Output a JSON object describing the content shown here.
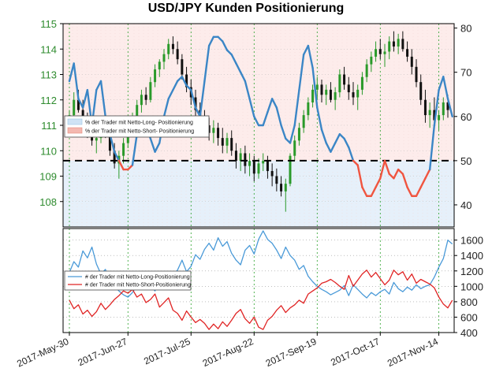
{
  "chart_data": [
    {
      "type": "candlestick+line",
      "title": "USD/JPY Kunden Positionierung",
      "y_left_lim": [
        107,
        115
      ],
      "y_left_ticks": [
        "108",
        "109",
        "110",
        "111",
        "112",
        "113",
        "114",
        "115"
      ],
      "y_right_lim": [
        35,
        81
      ],
      "y_right_ticks": [
        "40",
        "50",
        "60",
        "70",
        "80"
      ],
      "x_ticks": [
        "2017-May-30",
        "2017-Jun-27",
        "2017-Jul-25",
        "2017-Aug-22",
        "2017-Sep-19",
        "2017-Oct-17",
        "2017-Nov-14"
      ],
      "reference_line": 50,
      "legend": [
        {
          "label": "% der Trader mit Netto-Long- Positionierung",
          "color": "#cfe3f5"
        },
        {
          "label": "% der Trader mit Netto-Short- Positionierung",
          "color": "#f4b8b0"
        }
      ],
      "candles": [
        [
          111.0,
          111.6,
          110.6,
          111.4
        ],
        [
          111.4,
          112.3,
          111.2,
          112.0
        ],
        [
          112.0,
          112.4,
          111.5,
          111.6
        ],
        [
          111.6,
          112.0,
          111.0,
          111.2
        ],
        [
          111.2,
          111.5,
          110.5,
          110.7
        ],
        [
          110.7,
          111.0,
          110.2,
          110.4
        ],
        [
          110.4,
          110.9,
          109.9,
          110.5
        ],
        [
          110.5,
          111.2,
          110.3,
          111.0
        ],
        [
          111.0,
          111.4,
          110.5,
          110.6
        ],
        [
          110.6,
          110.8,
          109.8,
          110.0
        ],
        [
          110.0,
          110.3,
          109.3,
          109.5
        ],
        [
          109.5,
          110.0,
          108.9,
          109.8
        ],
        [
          109.8,
          110.5,
          109.5,
          110.3
        ],
        [
          110.3,
          111.0,
          110.1,
          110.8
        ],
        [
          110.8,
          111.5,
          110.6,
          111.3
        ],
        [
          111.3,
          112.0,
          111.0,
          111.8
        ],
        [
          111.8,
          112.4,
          111.5,
          112.2
        ],
        [
          112.2,
          112.5,
          111.8,
          112.0
        ],
        [
          112.0,
          112.9,
          111.9,
          112.7
        ],
        [
          112.7,
          113.4,
          112.5,
          113.2
        ],
        [
          113.2,
          113.6,
          112.9,
          113.5
        ],
        [
          113.5,
          114.0,
          113.2,
          113.8
        ],
        [
          113.8,
          114.4,
          113.6,
          114.2
        ],
        [
          114.2,
          114.5,
          113.8,
          114.0
        ],
        [
          114.0,
          114.3,
          113.4,
          113.6
        ],
        [
          113.6,
          113.8,
          112.8,
          113.0
        ],
        [
          113.0,
          113.3,
          112.3,
          112.5
        ],
        [
          112.5,
          112.8,
          111.8,
          112.1
        ],
        [
          112.1,
          112.4,
          111.3,
          111.6
        ],
        [
          111.6,
          111.9,
          110.9,
          111.2
        ],
        [
          111.2,
          111.6,
          110.6,
          111.0
        ],
        [
          111.0,
          111.3,
          110.4,
          110.7
        ],
        [
          110.7,
          111.2,
          110.3,
          110.9
        ],
        [
          110.9,
          111.1,
          110.2,
          110.5
        ],
        [
          110.5,
          110.9,
          109.9,
          110.2
        ],
        [
          110.2,
          110.7,
          109.9,
          110.5
        ],
        [
          110.5,
          110.8,
          109.8,
          110.0
        ],
        [
          110.0,
          110.3,
          109.3,
          109.6
        ],
        [
          109.6,
          110.1,
          109.2,
          109.9
        ],
        [
          109.9,
          110.2,
          109.1,
          109.4
        ],
        [
          109.4,
          109.9,
          109.0,
          109.6
        ],
        [
          109.6,
          109.8,
          108.8,
          109.1
        ],
        [
          109.1,
          109.7,
          108.9,
          109.5
        ],
        [
          109.5,
          109.9,
          109.2,
          109.6
        ],
        [
          109.6,
          109.8,
          108.9,
          109.2
        ],
        [
          109.2,
          109.5,
          108.6,
          109.0
        ],
        [
          109.0,
          109.3,
          108.4,
          108.7
        ],
        [
          108.7,
          109.0,
          108.2,
          108.4
        ],
        [
          108.4,
          108.9,
          107.6,
          108.7
        ],
        [
          108.7,
          109.9,
          108.6,
          109.8
        ],
        [
          109.8,
          110.6,
          109.6,
          110.4
        ],
        [
          110.4,
          111.1,
          110.2,
          110.9
        ],
        [
          110.9,
          111.6,
          110.7,
          111.4
        ],
        [
          111.4,
          112.1,
          111.2,
          111.9
        ],
        [
          111.9,
          112.6,
          111.7,
          112.4
        ],
        [
          112.4,
          112.9,
          112.0,
          112.6
        ],
        [
          112.6,
          112.8,
          111.9,
          112.2
        ],
        [
          112.2,
          112.6,
          111.8,
          112.4
        ],
        [
          112.4,
          112.7,
          111.9,
          112.0
        ],
        [
          112.0,
          112.5,
          111.6,
          112.3
        ],
        [
          112.3,
          113.2,
          112.1,
          113.0
        ],
        [
          113.0,
          113.3,
          112.4,
          112.6
        ],
        [
          112.6,
          112.9,
          112.0,
          112.3
        ],
        [
          112.3,
          112.7,
          111.8,
          112.1
        ],
        [
          112.1,
          112.6,
          111.6,
          112.4
        ],
        [
          112.4,
          113.1,
          112.2,
          112.9
        ],
        [
          112.9,
          113.6,
          112.7,
          113.4
        ],
        [
          113.4,
          113.9,
          113.1,
          113.7
        ],
        [
          113.7,
          114.3,
          113.5,
          114.0
        ],
        [
          114.0,
          114.4,
          113.6,
          113.8
        ],
        [
          113.8,
          114.2,
          113.3,
          113.9
        ],
        [
          113.9,
          114.5,
          113.6,
          114.3
        ],
        [
          114.3,
          114.7,
          113.9,
          114.1
        ],
        [
          114.1,
          114.6,
          113.8,
          114.4
        ],
        [
          114.4,
          114.7,
          113.9,
          114.0
        ],
        [
          114.0,
          114.3,
          113.5,
          113.7
        ],
        [
          113.7,
          114.0,
          113.0,
          113.3
        ],
        [
          113.3,
          113.6,
          112.5,
          112.7
        ],
        [
          112.7,
          113.0,
          111.8,
          112.0
        ],
        [
          112.0,
          112.4,
          111.1,
          111.4
        ],
        [
          111.4,
          111.9,
          110.9,
          111.6
        ],
        [
          111.6,
          112.1,
          111.0,
          111.2
        ],
        [
          111.2,
          111.6,
          110.8,
          111.4
        ],
        [
          111.4,
          112.1,
          111.2,
          111.9
        ],
        [
          111.9,
          112.2,
          111.3,
          111.6
        ]
      ],
      "long_pct": [
        68,
        72,
        64,
        62,
        66,
        58,
        66,
        68,
        60,
        56,
        52,
        50,
        48,
        48,
        49,
        56,
        60,
        58,
        55,
        52,
        54,
        60,
        64,
        66,
        68,
        69,
        67,
        66,
        62,
        60,
        68,
        76,
        78,
        78,
        77,
        75,
        74,
        72,
        70,
        68,
        64,
        60,
        58,
        58,
        61,
        64,
        62,
        58,
        55,
        54,
        58,
        66,
        74,
        76,
        71,
        62,
        57,
        54,
        52,
        54,
        56,
        55,
        53,
        50,
        49,
        44,
        42,
        42,
        44,
        46,
        50,
        47,
        46,
        48,
        47,
        44,
        42,
        42,
        44,
        46,
        48,
        58,
        66,
        69,
        64,
        60
      ]
    },
    {
      "type": "line",
      "y_lim": [
        400,
        1750
      ],
      "y_ticks": [
        "400",
        "600",
        "800",
        "1000",
        "1200",
        "1400",
        "1600"
      ],
      "series": [
        {
          "name": "# der Trader mit Netto-Long-Positionierung",
          "color": "#4a9ad8",
          "values": [
            1180,
            1320,
            1250,
            1460,
            1370,
            1510,
            1290,
            1160,
            1220,
            1060,
            1000,
            940,
            890,
            860,
            920,
            1010,
            960,
            1080,
            1020,
            940,
            1120,
            1060,
            990,
            1150,
            1210,
            1340,
            1190,
            1260,
            1410,
            1350,
            1480,
            1560,
            1470,
            1630,
            1520,
            1580,
            1430,
            1340,
            1280,
            1470,
            1530,
            1420,
            1610,
            1720,
            1610,
            1560,
            1470,
            1360,
            1510,
            1400,
            1340,
            1220,
            1270,
            1130,
            1060,
            1000,
            960,
            930,
            890,
            920,
            950,
            1010,
            880,
            1020,
            960,
            900,
            850,
            920,
            880,
            930,
            960,
            900,
            1050,
            970,
            930,
            990,
            950,
            1020,
            970,
            1000,
            1020,
            1120,
            1250,
            1360,
            1600,
            1550
          ]
        },
        {
          "name": "# der Trader mit Netto-Short-Positionierung",
          "color": "#e02424",
          "values": [
            820,
            710,
            760,
            640,
            690,
            610,
            670,
            780,
            700,
            760,
            830,
            880,
            940,
            910,
            960,
            860,
            900,
            790,
            830,
            900,
            730,
            790,
            850,
            690,
            650,
            560,
            680,
            600,
            530,
            570,
            520,
            440,
            510,
            450,
            540,
            480,
            560,
            650,
            700,
            580,
            520,
            600,
            470,
            440,
            560,
            610,
            690,
            750,
            660,
            720,
            760,
            820,
            780,
            900,
            940,
            980,
            1040,
            1060,
            1090,
            1050,
            1000,
            960,
            1140,
            1000,
            1080,
            1160,
            1210,
            1120,
            1180,
            1100,
            1020,
            1080,
            1210,
            1150,
            1190,
            1080,
            1160,
            1040,
            1090,
            1060,
            1030,
            980,
            860,
            770,
            720,
            820
          ]
        }
      ]
    }
  ]
}
